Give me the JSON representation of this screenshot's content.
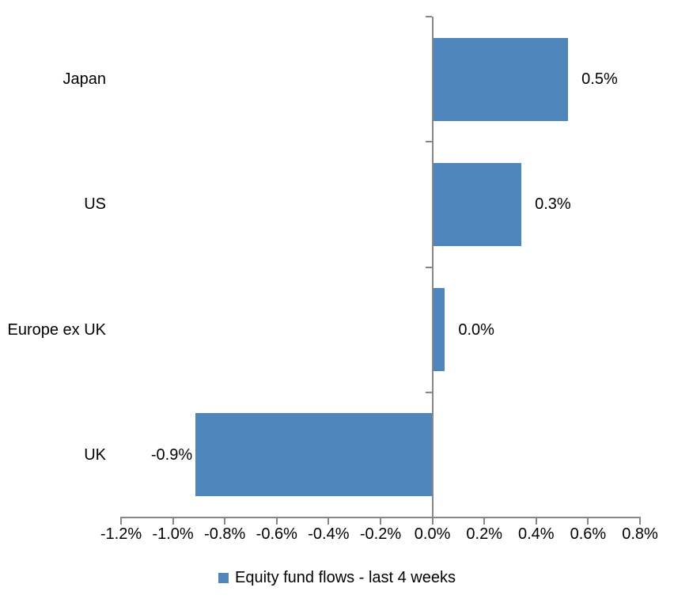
{
  "chart_data": {
    "type": "bar",
    "orientation": "horizontal",
    "title": "",
    "xlabel": "",
    "ylabel": "",
    "categories": [
      "Japan",
      "US",
      "Europe ex UK",
      "UK"
    ],
    "series": [
      {
        "name": "Equity fund flows - last 4 weeks",
        "values": [
          0.52,
          0.34,
          0.045,
          -0.91
        ],
        "value_labels": [
          "0.5%",
          "0.3%",
          "0.0%",
          "-0.9%"
        ]
      }
    ],
    "x_tick_labels": [
      "-1.2%",
      "-1.0%",
      "-0.8%",
      "-0.6%",
      "-0.4%",
      "-0.2%",
      "0.0%",
      "0.2%",
      "0.4%",
      "0.6%",
      "0.8%"
    ],
    "xlim": [
      -1.2,
      0.8
    ],
    "grid": false,
    "legend": {
      "position": "bottom",
      "label": "Equity fund flows - last 4 weeks"
    },
    "colors": {
      "bar": "#4E86BC",
      "axis": "#878787",
      "text": "#000000",
      "background": "#FFFFFF"
    }
  }
}
